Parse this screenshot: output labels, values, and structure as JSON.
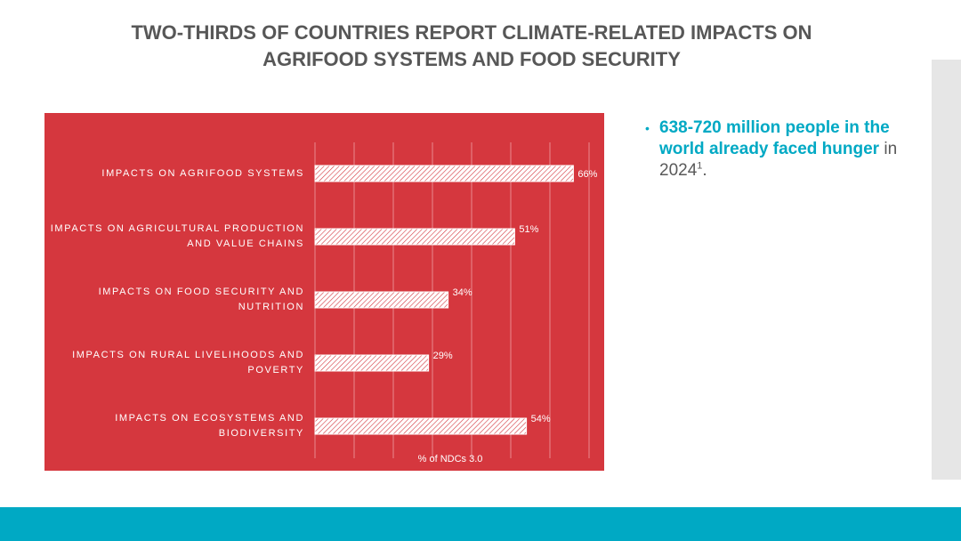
{
  "slide": {
    "title_line1": "TWO-THIRDS OF COUNTRIES REPORT CLIMATE-RELATED IMPACTS ON",
    "title_line2": "AGRIFOOD SYSTEMS AND FOOD SECURITY"
  },
  "bullet": {
    "marker": "•",
    "highlight": "638-720 million people in the world already faced hunger",
    "rest": " in 2024",
    "footnote": "1",
    "end": "."
  },
  "colors": {
    "panel": "#d5373e",
    "accent": "#00a9c4",
    "title": "#575757",
    "sidebar": "#e6e6e6"
  },
  "chart_data": {
    "type": "bar",
    "orientation": "horizontal",
    "title": "",
    "categories": [
      "IMPACTS ON AGRIFOOD SYSTEMS",
      "IMPACTS ON AGRICULTURAL PRODUCTION AND VALUE CHAINS",
      "IMPACTS ON FOOD SECURITY AND NUTRITION",
      "IMPACTS ON RURAL LIVELIHOODS AND POVERTY",
      "IMPACTS ON ECOSYSTEMS AND BIODIVERSITY"
    ],
    "values": [
      66,
      51,
      34,
      29,
      54
    ],
    "data_labels": [
      "66%",
      "51%",
      "34%",
      "29%",
      "54%"
    ],
    "xlabel": "% of NDCs 3.0",
    "ylabel": "",
    "xlim": [
      0,
      70
    ],
    "grid": true,
    "legend": "none"
  }
}
